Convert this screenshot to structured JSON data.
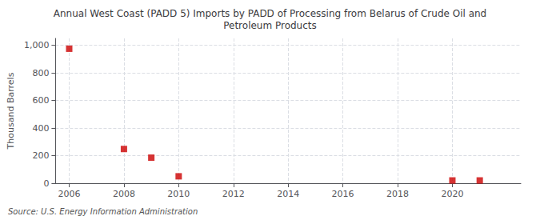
{
  "chart_data": {
    "type": "scatter",
    "title": "Annual West Coast (PADD 5) Imports by PADD of Processing from Belarus of Crude Oil and\nPetroleum Products",
    "ylabel": "Thousand Barrels",
    "annotation": "Source: U.S. Energy Information Administration",
    "x": [
      2006,
      2008,
      2009,
      2010,
      2020,
      2021
    ],
    "values": [
      975,
      248,
      185,
      50,
      20,
      20
    ],
    "color": "#cc0000",
    "marker": "square",
    "xlim": [
      2005.5,
      2022.5
    ],
    "xticks": [
      2006,
      2008,
      2010,
      2012,
      2014,
      2016,
      2018,
      2020
    ],
    "ylim": [
      0,
      1050
    ],
    "yticks": [
      0,
      200,
      400,
      600,
      800,
      {
        "value": 1000,
        "label": "1,000"
      }
    ],
    "grid": true
  }
}
